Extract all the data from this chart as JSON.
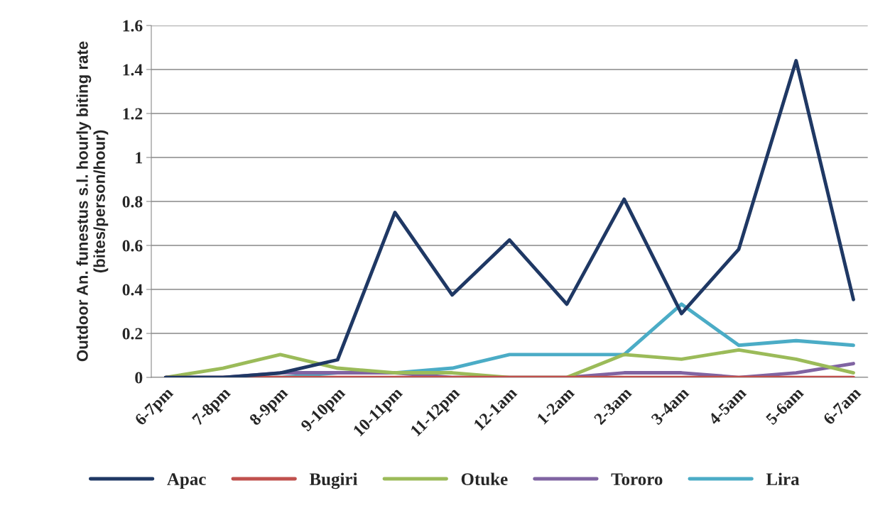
{
  "chart_data": {
    "type": "line",
    "ylabel": "Outdoor An. funestus s.l. hourly biting rate\n(bites/person/hour)",
    "categories": [
      "6-7pm",
      "7-8pm",
      "8-9pm",
      "9-10pm",
      "10-11pm",
      "11-12pm",
      "12-1am",
      "1-2am",
      "2-3am",
      "3-4am",
      "4-5am",
      "5-6am",
      "6-7am"
    ],
    "series": [
      {
        "name": "Apac",
        "color": "#1f3864",
        "values": [
          0,
          0,
          0.02,
          0.08,
          0.75,
          0.375,
          0.625,
          0.333,
          0.81,
          0.29,
          0.583,
          1.44,
          0.354
        ]
      },
      {
        "name": "Bugiri",
        "color": "#c0504d",
        "values": [
          0,
          0,
          0,
          0,
          0,
          0,
          0,
          0,
          0,
          0,
          0,
          0,
          0
        ]
      },
      {
        "name": "Otuke",
        "color": "#9bbb59",
        "values": [
          0,
          0.042,
          0.104,
          0.042,
          0.021,
          0.021,
          0,
          0,
          0.104,
          0.083,
          0.125,
          0.083,
          0.021
        ]
      },
      {
        "name": "Tororo",
        "color": "#8064a2",
        "values": [
          0,
          0,
          0.021,
          0.021,
          0.021,
          0,
          0,
          0,
          0.021,
          0.021,
          0,
          0.021,
          0.063
        ]
      },
      {
        "name": "Lira",
        "color": "#4bacc6",
        "values": [
          0,
          0,
          0,
          0.021,
          0.021,
          0.042,
          0.104,
          0.104,
          0.104,
          0.333,
          0.146,
          0.167,
          0.146
        ]
      }
    ],
    "ylim": [
      0,
      1.6
    ],
    "yticks": [
      0,
      0.2,
      0.4,
      0.6,
      0.8,
      1,
      1.2,
      1.4,
      1.6
    ],
    "grid": "y",
    "legend": "bottom",
    "marker": "none",
    "line_style": "solid"
  }
}
